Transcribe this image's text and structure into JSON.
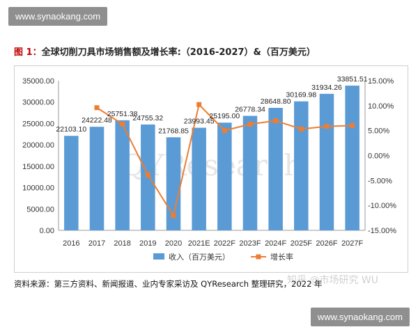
{
  "watermarks": {
    "top": "www.synaokang.com",
    "bottom": "www.synaokang.com",
    "chart_center": "QYResearch",
    "zhihu": "知乎 @市场研究 WU"
  },
  "title": {
    "prefix": "图 1：",
    "text": "全球切削刀具市场销售额及增长率:（2016-2027）&（百万美元）"
  },
  "source": "资料来源：第三方资料、新闻报道、业内专家采访及 QYResearch 整理研究，2022 年",
  "colors": {
    "bar": "#5b9bd5",
    "line": "#ed7d31",
    "title_prefix": "#c00000"
  },
  "chart_data": {
    "type": "bar",
    "title": "",
    "categories": [
      "2016",
      "2017",
      "2018",
      "2019",
      "2020",
      "2021E",
      "2022F",
      "2023F",
      "2024F",
      "2025F",
      "2026F",
      "2027F"
    ],
    "series": [
      {
        "name": "收入（百万美元）",
        "type": "bar",
        "axis": "left",
        "values": [
          22103.1,
          24222.48,
          25751.38,
          24755.32,
          21768.85,
          23993.45,
          25195.0,
          26778.34,
          28648.8,
          30169.98,
          31934.26,
          33851.51
        ],
        "labels": [
          "22103.10",
          "24222.48",
          "25751.38",
          "24755.32",
          "21768.85",
          "23993.45",
          "25195.00",
          "26778.34",
          "28648.80",
          "30169.98",
          "31934.26",
          "33851.51"
        ]
      },
      {
        "name": "增长率",
        "type": "line",
        "axis": "right",
        "values": [
          null,
          9.59,
          6.31,
          -3.87,
          -12.06,
          10.22,
          5.01,
          6.28,
          6.98,
          5.31,
          5.85,
          6.0
        ]
      }
    ],
    "y_left": {
      "range": [
        0,
        35000
      ],
      "ticks": [
        "0.00",
        "5000.00",
        "10000.00",
        "15000.00",
        "20000.00",
        "25000.00",
        "30000.00",
        "35000.00"
      ]
    },
    "y_right": {
      "range": [
        -15,
        15
      ],
      "ticks": [
        "-15.00%",
        "-10.00%",
        "-5.00%",
        "0.00%",
        "5.00%",
        "10.00%",
        "15.00%"
      ]
    },
    "grid": false,
    "legend": "bottom-center"
  }
}
